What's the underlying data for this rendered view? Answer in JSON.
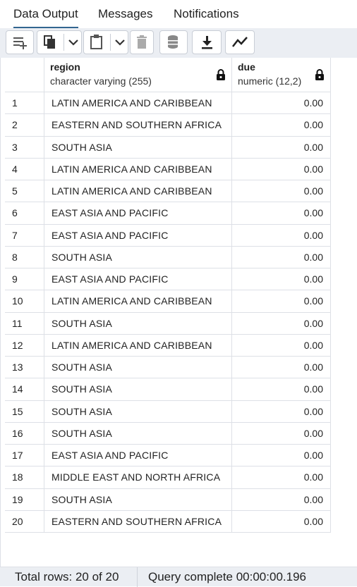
{
  "tabs": [
    {
      "label": "Data Output",
      "active": true
    },
    {
      "label": "Messages",
      "active": false
    },
    {
      "label": "Notifications",
      "active": false
    }
  ],
  "toolbar": {
    "buttons": [
      "add-row-icon",
      "copy-icon",
      "chevron-down-icon",
      "paste-icon",
      "chevron-down-icon",
      "delete-icon",
      "save-data-icon",
      "download-icon",
      "graph-icon"
    ]
  },
  "columns": [
    {
      "name": "region",
      "type": "character varying (255)"
    },
    {
      "name": "due",
      "type": "numeric (12,2)"
    }
  ],
  "rows": [
    {
      "n": "1",
      "region": "LATIN AMERICA AND CARIBBEAN",
      "due": "0.00"
    },
    {
      "n": "2",
      "region": "EASTERN AND SOUTHERN AFRICA",
      "due": "0.00"
    },
    {
      "n": "3",
      "region": "SOUTH ASIA",
      "due": "0.00"
    },
    {
      "n": "4",
      "region": "LATIN AMERICA AND CARIBBEAN",
      "due": "0.00"
    },
    {
      "n": "5",
      "region": "LATIN AMERICA AND CARIBBEAN",
      "due": "0.00"
    },
    {
      "n": "6",
      "region": "EAST ASIA AND PACIFIC",
      "due": "0.00"
    },
    {
      "n": "7",
      "region": "EAST ASIA AND PACIFIC",
      "due": "0.00"
    },
    {
      "n": "8",
      "region": "SOUTH ASIA",
      "due": "0.00"
    },
    {
      "n": "9",
      "region": "EAST ASIA AND PACIFIC",
      "due": "0.00"
    },
    {
      "n": "10",
      "region": "LATIN AMERICA AND CARIBBEAN",
      "due": "0.00"
    },
    {
      "n": "11",
      "region": "SOUTH ASIA",
      "due": "0.00"
    },
    {
      "n": "12",
      "region": "LATIN AMERICA AND CARIBBEAN",
      "due": "0.00"
    },
    {
      "n": "13",
      "region": "SOUTH ASIA",
      "due": "0.00"
    },
    {
      "n": "14",
      "region": "SOUTH ASIA",
      "due": "0.00"
    },
    {
      "n": "15",
      "region": "SOUTH ASIA",
      "due": "0.00"
    },
    {
      "n": "16",
      "region": "SOUTH ASIA",
      "due": "0.00"
    },
    {
      "n": "17",
      "region": "EAST ASIA AND PACIFIC",
      "due": "0.00"
    },
    {
      "n": "18",
      "region": "MIDDLE EAST AND NORTH AFRICA",
      "due": "0.00"
    },
    {
      "n": "19",
      "region": "SOUTH ASIA",
      "due": "0.00"
    },
    {
      "n": "20",
      "region": "EASTERN AND SOUTHERN AFRICA",
      "due": "0.00"
    }
  ],
  "status": {
    "total_rows": "Total rows: 20 of 20",
    "query": "Query complete 00:00:00.196"
  },
  "colors": {
    "accent": "#326690",
    "toolbar_bg": "#ebeef3",
    "border": "#dde0e6"
  }
}
